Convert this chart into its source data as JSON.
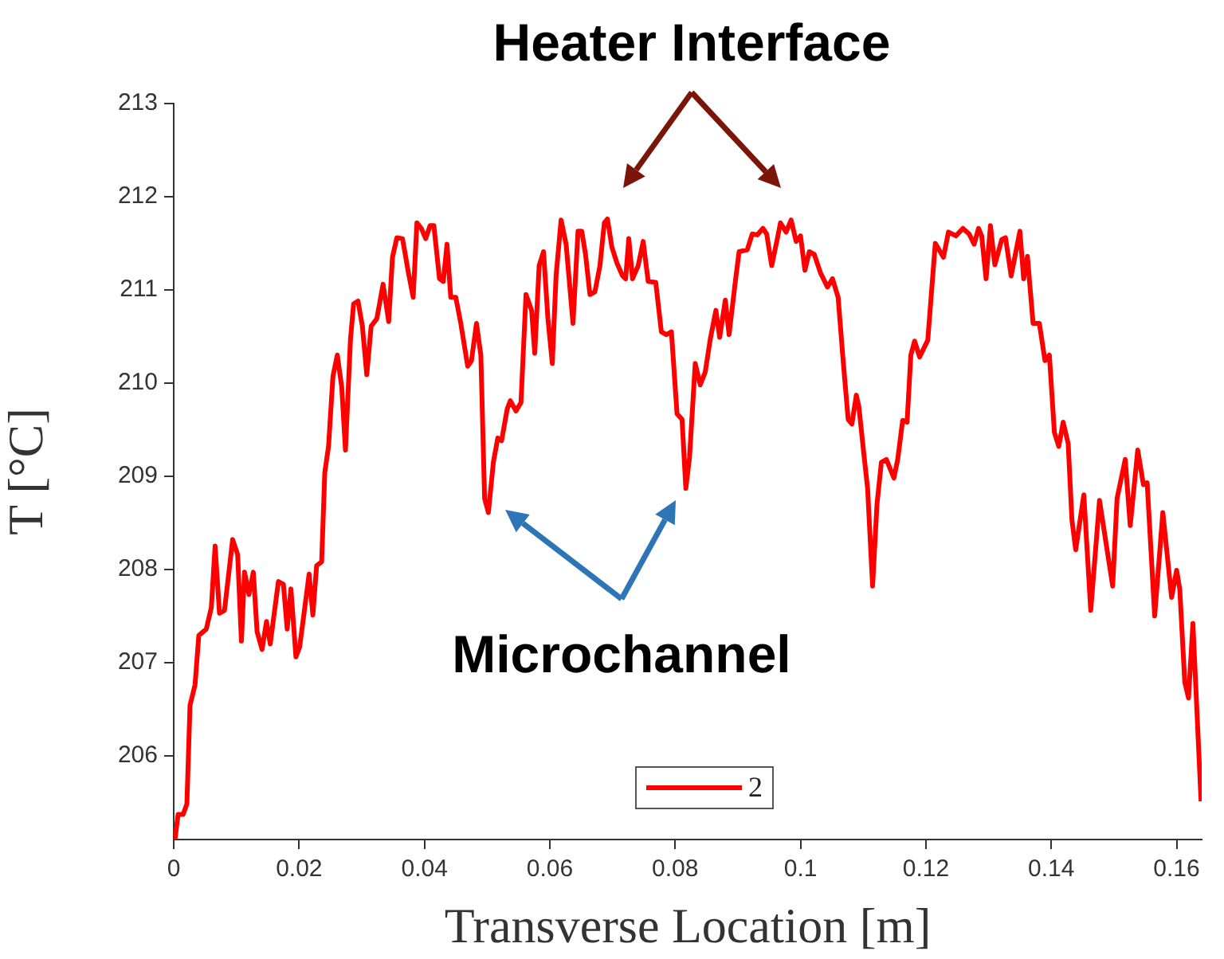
{
  "chart_data": {
    "type": "line",
    "xlabel": "Transverse Location [m]",
    "ylabel": "T [°C]",
    "annotations": [
      "Heater Interface",
      "Microchannel"
    ],
    "xlim": [
      0,
      0.164
    ],
    "xticks": [
      0,
      0.02,
      0.04,
      0.06,
      0.08,
      0.1,
      0.12,
      0.14,
      0.16
    ],
    "ylim": [
      205.1,
      213
    ],
    "yticks": [
      206,
      207,
      208,
      209,
      210,
      211,
      212,
      213
    ],
    "grid": false,
    "legend": "bottom",
    "marker": "none",
    "line_style": "solid",
    "series": [
      {
        "name": "2",
        "color": "#ff0000",
        "x": [
          0.0002,
          0.0007,
          0.0015,
          0.0021,
          0.0026,
          0.0034,
          0.004,
          0.0052,
          0.006,
          0.0066,
          0.0073,
          0.0081,
          0.0094,
          0.0102,
          0.0108,
          0.0113,
          0.012,
          0.0127,
          0.0133,
          0.0141,
          0.0148,
          0.0154,
          0.0167,
          0.0175,
          0.0181,
          0.0187,
          0.0195,
          0.0201,
          0.0216,
          0.0222,
          0.0228,
          0.0236,
          0.0241,
          0.0247,
          0.0254,
          0.0261,
          0.0268,
          0.0274,
          0.0282,
          0.0287,
          0.0294,
          0.0301,
          0.0308,
          0.0315,
          0.0324,
          0.0334,
          0.0343,
          0.0349,
          0.0356,
          0.0365,
          0.0374,
          0.0382,
          0.0388,
          0.0395,
          0.0402,
          0.0409,
          0.0415,
          0.0424,
          0.043,
          0.0436,
          0.0442,
          0.045,
          0.0458,
          0.0469,
          0.0475,
          0.0483,
          0.049,
          0.0496,
          0.0502,
          0.051,
          0.0517,
          0.0523,
          0.0532,
          0.0537,
          0.0546,
          0.0554,
          0.0562,
          0.0571,
          0.0576,
          0.0583,
          0.059,
          0.0597,
          0.0604,
          0.061,
          0.0618,
          0.0626,
          0.0637,
          0.0645,
          0.0651,
          0.0657,
          0.0664,
          0.0672,
          0.068,
          0.0687,
          0.0692,
          0.0699,
          0.0707,
          0.0716,
          0.0721,
          0.0726,
          0.0732,
          0.0741,
          0.0749,
          0.0757,
          0.0769,
          0.0778,
          0.0786,
          0.0794,
          0.0803,
          0.0811,
          0.0817,
          0.0823,
          0.0832,
          0.084,
          0.0848,
          0.0856,
          0.0865,
          0.0871,
          0.088,
          0.0886,
          0.0896,
          0.0902,
          0.0915,
          0.0923,
          0.0931,
          0.094,
          0.0946,
          0.0954,
          0.0963,
          0.0968,
          0.0977,
          0.0985,
          0.0993,
          0.1,
          0.1007,
          0.1014,
          0.1022,
          0.1032,
          0.1043,
          0.1051,
          0.106,
          0.1068,
          0.1076,
          0.1082,
          0.1089,
          0.1093,
          0.1101,
          0.1107,
          0.1115,
          0.1122,
          0.1129,
          0.1137,
          0.1149,
          0.1155,
          0.1163,
          0.117,
          0.1176,
          0.1182,
          0.119,
          0.1203,
          0.1215,
          0.1228,
          0.1236,
          0.1248,
          0.1259,
          0.1269,
          0.1277,
          0.1284,
          0.1289,
          0.1296,
          0.1303,
          0.131,
          0.1321,
          0.1327,
          0.1336,
          0.135,
          0.1356,
          0.1362,
          0.1371,
          0.1381,
          0.139,
          0.1397,
          0.1405,
          0.1412,
          0.1419,
          0.1427,
          0.1433,
          0.1439,
          0.1452,
          0.1463,
          0.1477,
          0.1487,
          0.1498,
          0.1505,
          0.1518,
          0.1526,
          0.1538,
          0.1547,
          0.1553,
          0.1565,
          0.1578,
          0.1592,
          0.16,
          0.1605,
          0.1613,
          0.1619,
          0.1626,
          0.1639
        ],
        "values": [
          205.1,
          205.37,
          205.37,
          205.48,
          206.54,
          206.76,
          207.29,
          207.36,
          207.59,
          208.25,
          207.53,
          207.56,
          208.32,
          208.16,
          207.23,
          207.97,
          207.73,
          207.97,
          207.33,
          207.14,
          207.44,
          207.2,
          207.87,
          207.84,
          207.36,
          207.79,
          207.06,
          207.17,
          207.95,
          207.51,
          208.04,
          208.08,
          209.04,
          209.32,
          210.07,
          210.3,
          209.96,
          209.28,
          210.47,
          210.85,
          210.88,
          210.61,
          210.09,
          210.61,
          210.69,
          211.06,
          210.66,
          211.35,
          211.56,
          211.55,
          211.2,
          210.92,
          211.72,
          211.66,
          211.55,
          211.69,
          211.69,
          211.12,
          211.09,
          211.49,
          210.92,
          210.92,
          210.64,
          210.18,
          210.24,
          210.64,
          210.3,
          208.76,
          208.61,
          209.15,
          209.41,
          209.38,
          209.72,
          209.81,
          209.7,
          209.79,
          210.95,
          210.78,
          210.32,
          211.26,
          211.41,
          210.69,
          210.21,
          211.15,
          211.75,
          211.49,
          210.64,
          211.63,
          211.63,
          211.38,
          210.95,
          210.98,
          211.26,
          211.72,
          211.76,
          211.46,
          211.29,
          211.15,
          211.12,
          211.55,
          211.12,
          211.26,
          211.52,
          211.09,
          211.08,
          210.55,
          210.52,
          210.55,
          209.67,
          209.61,
          208.87,
          209.21,
          210.21,
          209.98,
          210.12,
          210.47,
          210.78,
          210.49,
          210.89,
          210.52,
          211.09,
          211.41,
          211.43,
          211.6,
          211.59,
          211.66,
          211.6,
          211.26,
          211.55,
          211.72,
          211.62,
          211.75,
          211.52,
          211.58,
          211.21,
          211.41,
          211.38,
          211.18,
          211.03,
          211.12,
          210.92,
          210.24,
          209.61,
          209.56,
          209.87,
          209.75,
          209.24,
          208.87,
          207.82,
          208.7,
          209.15,
          209.18,
          208.98,
          209.18,
          209.6,
          209.58,
          210.3,
          210.45,
          210.28,
          210.46,
          211.5,
          211.35,
          211.62,
          211.58,
          211.66,
          211.6,
          211.49,
          211.66,
          211.58,
          211.12,
          211.69,
          211.27,
          211.54,
          211.56,
          211.15,
          211.63,
          211.12,
          211.36,
          210.64,
          210.64,
          210.24,
          210.3,
          209.47,
          209.32,
          209.58,
          209.35,
          208.53,
          208.21,
          208.8,
          207.56,
          208.74,
          208.3,
          207.82,
          208.76,
          209.18,
          208.47,
          209.28,
          208.91,
          208.93,
          207.5,
          208.61,
          207.7,
          207.99,
          207.79,
          206.79,
          206.62,
          207.42,
          205.51
        ]
      }
    ]
  }
}
